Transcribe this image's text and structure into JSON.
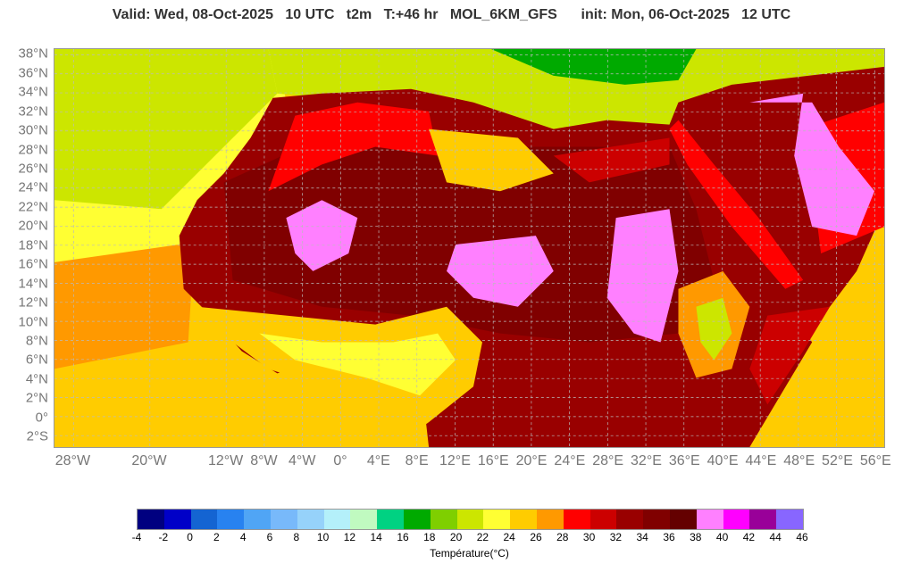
{
  "title": "Valid: Wed, 08-Oct-2025   10 UTC   t2m   T:+46 hr   MOL_6KM_GFS      init: Mon, 06-Oct-2025   12 UTC",
  "map": {
    "lat_labels": [
      "38°N",
      "36°N",
      "34°N",
      "32°N",
      "30°N",
      "28°N",
      "26°N",
      "24°N",
      "22°N",
      "20°N",
      "18°N",
      "16°N",
      "14°N",
      "12°N",
      "10°N",
      "8°N",
      "6°N",
      "4°N",
      "2°N",
      "0°",
      "2°S"
    ],
    "lat_values": [
      38,
      36,
      34,
      32,
      30,
      28,
      26,
      24,
      22,
      20,
      18,
      16,
      14,
      12,
      10,
      8,
      6,
      4,
      2,
      0,
      -2
    ],
    "lon_labels": [
      "28°W",
      "20°W",
      "12°W",
      "8°W",
      "4°W",
      "0°",
      "4°E",
      "8°E",
      "12°E",
      "16°E",
      "20°E",
      "24°E",
      "28°E",
      "32°E",
      "36°E",
      "40°E",
      "44°E",
      "48°E",
      "52°E",
      "56°E"
    ],
    "lon_values": [
      -28,
      -20,
      -12,
      -8,
      -4,
      0,
      4,
      8,
      12,
      16,
      20,
      24,
      28,
      32,
      36,
      40,
      44,
      48,
      52,
      56
    ],
    "extent": {
      "lon": [
        -30,
        57
      ],
      "lat": [
        -3.2,
        38.6
      ]
    }
  },
  "colorbar": {
    "label": "Température(°C)",
    "ticks": [
      "-4",
      "-2",
      "0",
      "2",
      "4",
      "6",
      "8",
      "10",
      "12",
      "14",
      "16",
      "18",
      "20",
      "22",
      "24",
      "26",
      "28",
      "30",
      "32",
      "34",
      "36",
      "38",
      "40",
      "42",
      "44",
      "46"
    ],
    "colors": [
      "#000080",
      "#0000c8",
      "#1464d2",
      "#2882f0",
      "#50a5f5",
      "#78b9fa",
      "#96d2fa",
      "#b4f0fa",
      "#c0fac0",
      "#00d282",
      "#00aa00",
      "#7fcf00",
      "#cce600",
      "#ffff33",
      "#ffcc00",
      "#ff9900",
      "#ff0000",
      "#cc0000",
      "#990000",
      "#800000",
      "#640000",
      "#ff80ff",
      "#ff00ff",
      "#990099",
      "#8866ff"
    ]
  }
}
